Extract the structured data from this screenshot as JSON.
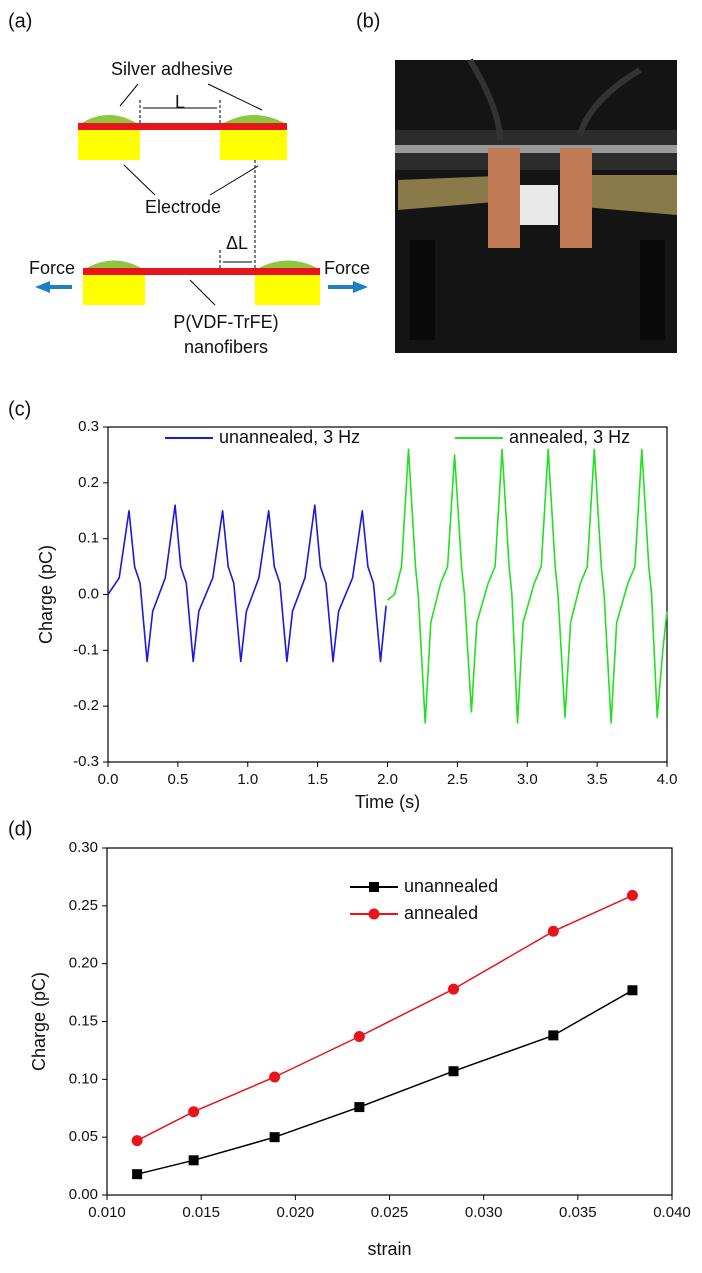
{
  "panels": {
    "a": "(a)",
    "b": "(b)",
    "c": "(c)",
    "d": "(d)"
  },
  "diagram": {
    "silver_adhesive": "Silver adhesive",
    "length": "L",
    "electrode": "Electrode",
    "delta_length": "ΔL",
    "force_left": "Force",
    "force_right": "Force",
    "fiber_line1": "P(VDF-TrFE)",
    "fiber_line2": "nanofibers"
  },
  "chart_data": [
    {
      "type": "line",
      "xlabel": "Time (s)",
      "ylabel": "Charge (pC)",
      "xlim": [
        0,
        4
      ],
      "ylim": [
        -0.3,
        0.3
      ],
      "xticks": [
        {
          "value": 0,
          "label": "0.0"
        },
        0.5,
        {
          "value": 1,
          "label": "1.0"
        },
        1.5,
        {
          "value": 2,
          "label": "2.0"
        },
        2.5,
        {
          "value": 3,
          "label": "3.0"
        },
        3.5,
        {
          "value": 4,
          "label": "4.0"
        }
      ],
      "yticks": [
        -0.3,
        -0.2,
        -0.1,
        {
          "value": 0,
          "label": "0.0"
        },
        0.1,
        0.2,
        0.3
      ],
      "series": [
        {
          "name": "unannealed, 3 Hz",
          "color": "#1a1adf",
          "x": [
            0,
            0.08,
            0.15,
            0.19,
            0.23,
            0.28,
            0.32,
            0.41,
            0.48,
            0.52,
            0.56,
            0.61,
            0.65,
            0.75,
            0.82,
            0.86,
            0.9,
            0.95,
            0.99,
            1.08,
            1.15,
            1.19,
            1.23,
            1.28,
            1.32,
            1.41,
            1.48,
            1.52,
            1.56,
            1.61,
            1.65,
            1.75,
            1.82,
            1.86,
            1.9,
            1.95,
            1.99
          ],
          "values": [
            0,
            0.03,
            0.15,
            0.05,
            0.02,
            -0.12,
            -0.03,
            0.03,
            0.16,
            0.05,
            0.02,
            -0.12,
            -0.03,
            0.03,
            0.15,
            0.05,
            0.02,
            -0.12,
            -0.03,
            0.03,
            0.15,
            0.05,
            0.02,
            -0.12,
            -0.03,
            0.03,
            0.16,
            0.05,
            0.02,
            -0.12,
            -0.03,
            0.03,
            0.15,
            0.05,
            0.02,
            -0.12,
            -0.02
          ]
        },
        {
          "name": "annealed, 3 Hz",
          "color": "#22e022",
          "x": [
            2,
            2.05,
            2.1,
            2.15,
            2.2,
            2.22,
            2.27,
            2.31,
            2.38,
            2.43,
            2.48,
            2.53,
            2.55,
            2.6,
            2.64,
            2.72,
            2.77,
            2.82,
            2.87,
            2.89,
            2.93,
            2.97,
            3.05,
            3.1,
            3.15,
            3.2,
            3.22,
            3.27,
            3.31,
            3.38,
            3.43,
            3.48,
            3.53,
            3.55,
            3.6,
            3.64,
            3.72,
            3.77,
            3.82,
            3.87,
            3.89,
            3.93,
            3.97,
            4
          ],
          "values": [
            -0.01,
            0,
            0.05,
            0.26,
            0.05,
            0,
            -0.23,
            -0.05,
            0.02,
            0.05,
            0.25,
            0.05,
            0,
            -0.21,
            -0.05,
            0.02,
            0.05,
            0.26,
            0.05,
            0,
            -0.23,
            -0.05,
            0.02,
            0.05,
            0.26,
            0.05,
            0,
            -0.22,
            -0.05,
            0.02,
            0.05,
            0.26,
            0.05,
            0,
            -0.23,
            -0.05,
            0.02,
            0.05,
            0.26,
            0.05,
            0,
            -0.22,
            -0.1,
            -0.03
          ]
        }
      ]
    },
    {
      "type": "line",
      "xlabel": "strain",
      "ylabel": "Charge (pC)",
      "markers": true,
      "xlim": [
        0.01,
        0.04
      ],
      "ylim": [
        0,
        0.3
      ],
      "xticks": [
        {
          "value": 0.01,
          "label": "0.010"
        },
        {
          "value": 0.015,
          "label": "0.015"
        },
        {
          "value": 0.02,
          "label": "0.020"
        },
        {
          "value": 0.025,
          "label": "0.025"
        },
        {
          "value": 0.03,
          "label": "0.030"
        },
        {
          "value": 0.035,
          "label": "0.035"
        },
        {
          "value": 0.04,
          "label": "0.040"
        }
      ],
      "yticks": [
        {
          "value": 0,
          "label": "0.00"
        },
        0.05,
        {
          "value": 0.1,
          "label": "0.10"
        },
        0.15,
        {
          "value": 0.2,
          "label": "0.20"
        },
        0.25,
        {
          "value": 0.3,
          "label": "0.30"
        }
      ],
      "x": [
        0.0116,
        0.0146,
        0.0189,
        0.0234,
        0.0284,
        0.0337,
        0.0379
      ],
      "series": [
        {
          "name": "unannealed",
          "color": "#000000",
          "marker": "square",
          "values": [
            0.018,
            0.03,
            0.05,
            0.076,
            0.107,
            0.138,
            0.177
          ]
        },
        {
          "name": "annealed",
          "color": "#e8141b",
          "marker": "circle",
          "values": [
            0.047,
            0.072,
            0.102,
            0.137,
            0.178,
            0.228,
            0.259
          ]
        }
      ]
    }
  ]
}
